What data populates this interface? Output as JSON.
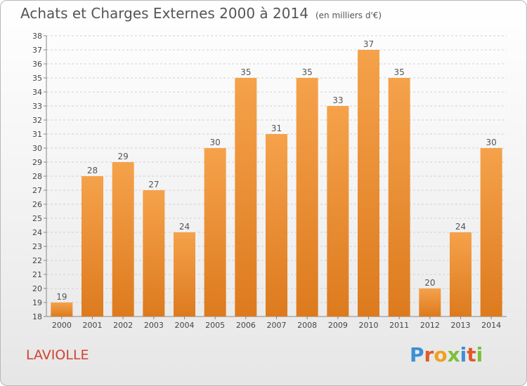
{
  "title": "Achats et Charges Externes 2000 à 2014",
  "unit": "(en milliers d'€)",
  "place": "LAVIOLLE",
  "logo": {
    "letters": [
      "P",
      "r",
      "o",
      "x",
      "i",
      "t",
      "i"
    ],
    "colors": [
      "#3d8fd6",
      "#e05a2b",
      "#f0a020",
      "#7cbf3a",
      "#3d8fd6",
      "#e05a2b",
      "#7cbf3a"
    ]
  },
  "chart_data": {
    "type": "bar",
    "categories": [
      "2000",
      "2001",
      "2002",
      "2003",
      "2004",
      "2005",
      "2006",
      "2007",
      "2008",
      "2009",
      "2010",
      "2011",
      "2012",
      "2013",
      "2014"
    ],
    "values": [
      19,
      28,
      29,
      27,
      24,
      30,
      35,
      31,
      35,
      33,
      37,
      35,
      20,
      24,
      30
    ],
    "ylim": [
      18,
      38
    ],
    "yticks": [
      18,
      19,
      20,
      21,
      22,
      23,
      24,
      25,
      26,
      27,
      28,
      29,
      30,
      31,
      32,
      33,
      34,
      35,
      36,
      37,
      38
    ],
    "grid": true,
    "bar_color": "#f5a24b",
    "bar_color_dark": "#dd7a1e"
  }
}
